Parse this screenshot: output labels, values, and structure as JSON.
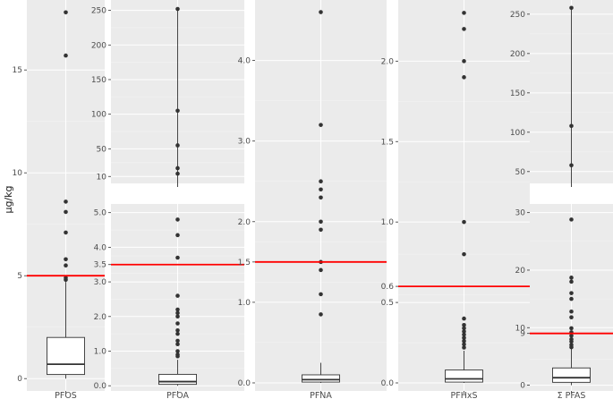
{
  "chart_data": {
    "type": "box",
    "ylabel": "µg/kg",
    "grid": true,
    "background": "#ebebeb",
    "threshold_color": "#ff0000",
    "outlier_color": "#333333",
    "box_fill": "#ffffff",
    "panels": [
      {
        "name": "PFOS",
        "axes": [
          {
            "ylim": [
              -0.6,
              18.4
            ],
            "ticks": [
              0,
              5,
              10,
              15
            ],
            "tick_labels": [
              "0",
              "5",
              "10",
              "15"
            ],
            "box": {
              "lower_whisker": 0,
              "q1": 0.2,
              "median": 0.7,
              "q3": 2.0,
              "upper_whisker": 4.7
            },
            "outliers": [
              17.8,
              15.7,
              8.6,
              8.1,
              7.1,
              5.8,
              5.5,
              4.9,
              4.8
            ],
            "threshold": 5
          }
        ]
      },
      {
        "name": "PFOA",
        "axes": [
          {
            "ylim": [
              0,
              265
            ],
            "ticks": [
              10,
              50,
              100,
              150,
              200,
              250
            ],
            "tick_labels": [
              "10",
              "50",
              "100",
              "150",
              "200",
              "250"
            ],
            "outliers": [
              252,
              105,
              55,
              22,
              14
            ],
            "stem_to_bottom": true
          },
          {
            "ylim": [
              -0.15,
              5.25
            ],
            "ticks": [
              0,
              1,
              2,
              3,
              3.5,
              4,
              5
            ],
            "tick_labels": [
              "0.0",
              "1.0",
              "2.0",
              "3.0",
              "3.5",
              "4.0",
              "5.0"
            ],
            "box": {
              "lower_whisker": 0,
              "q1": 0.04,
              "median": 0.12,
              "q3": 0.33,
              "upper_whisker": 0.75
            },
            "outliers": [
              4.8,
              4.35,
              3.7,
              2.6,
              2.2,
              2.1,
              2.0,
              1.8,
              1.6,
              1.5,
              1.3,
              1.2,
              1.0,
              0.9,
              0.85
            ],
            "threshold": 3.5
          }
        ]
      },
      {
        "name": "PFNA",
        "axes": [
          {
            "ylim": [
              -0.1,
              4.75
            ],
            "ticks": [
              0,
              1,
              1.5,
              2,
              3,
              4
            ],
            "tick_labels": [
              "0.0",
              "1.0",
              "1.5",
              "2.0",
              "3.0",
              "4.0"
            ],
            "box": {
              "lower_whisker": 0,
              "q1": 0.01,
              "median": 0.04,
              "q3": 0.1,
              "upper_whisker": 0.25
            },
            "outliers": [
              4.6,
              3.2,
              2.5,
              2.4,
              2.3,
              2.0,
              1.9,
              1.5,
              1.4,
              1.1,
              0.85
            ],
            "threshold": 1.5
          }
        ]
      },
      {
        "name": "PFHxS",
        "axes": [
          {
            "ylim": [
              -0.05,
              2.38
            ],
            "ticks": [
              0,
              0.5,
              0.6,
              1,
              1.5,
              2
            ],
            "tick_labels": [
              "0.0",
              "0.5",
              "0.6",
              "1.0",
              "1.5",
              "2.0"
            ],
            "box": {
              "lower_whisker": 0,
              "q1": 0.005,
              "median": 0.025,
              "q3": 0.08,
              "upper_whisker": 0.2
            },
            "outliers": [
              2.3,
              2.2,
              2.0,
              1.9,
              1.0,
              0.8,
              0.4,
              0.36,
              0.34,
              0.32,
              0.3,
              0.28,
              0.26,
              0.24,
              0.22
            ],
            "threshold": 0.6
          }
        ]
      },
      {
        "name": "Σ PFAS",
        "axes": [
          {
            "ylim": [
              35,
              268
            ],
            "ticks": [
              50,
              100,
              150,
              200,
              250
            ],
            "tick_labels": [
              "50",
              "100",
              "150",
              "200",
              "250"
            ],
            "outliers": [
              258,
              108,
              58
            ],
            "stem_to_bottom": true
          },
          {
            "ylim": [
              -1,
              31.5
            ],
            "ticks": [
              0,
              9,
              10,
              20,
              30
            ],
            "tick_labels": [
              "0",
              "9",
              "10",
              "20",
              "30"
            ],
            "box": {
              "lower_whisker": 0,
              "q1": 0.5,
              "median": 1.3,
              "q3": 3.0,
              "upper_whisker": 6.5
            },
            "outliers": [
              28.8,
              18.7,
              18.0,
              16.0,
              15.0,
              12.8,
              11.8,
              9.9,
              9.2,
              8.6,
              8.0,
              7.6,
              7.0,
              6.6
            ],
            "threshold": 9
          }
        ]
      }
    ]
  }
}
